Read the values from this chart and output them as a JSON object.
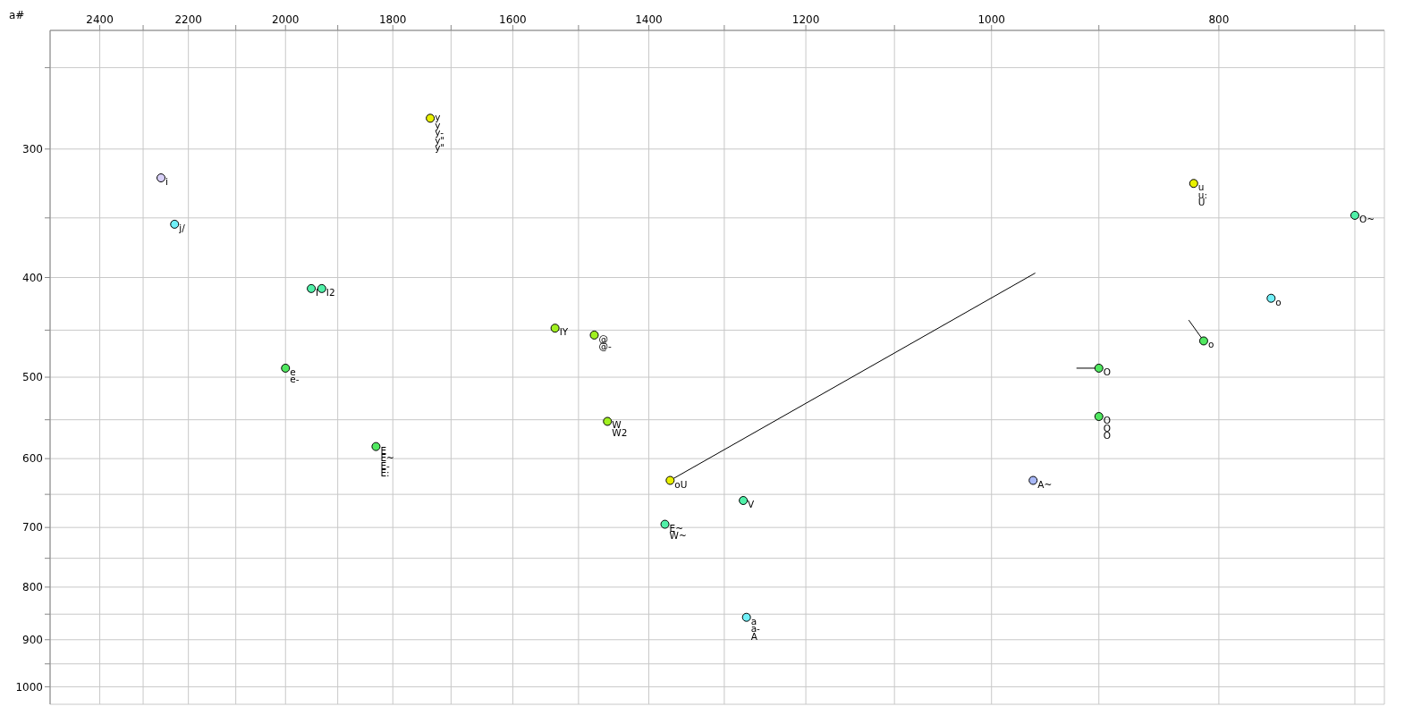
{
  "chart_data": {
    "type": "scatter",
    "log": "xy",
    "grid": true,
    "annotations": [
      "a#",
      {
        "text": "i",
        "x": 2260,
        "y": 320
      },
      {
        "text": "j/",
        "x": 2230,
        "y": 355
      },
      {
        "text": "I",
        "x": 1950,
        "y": 410
      },
      {
        "text": "I2",
        "x": 1930,
        "y": 410
      },
      {
        "text": "y",
        "x": 1735,
        "y": 280
      },
      {
        "text": "y",
        "x": 1735,
        "y": 280
      },
      {
        "text": "y-",
        "x": 1735,
        "y": 280
      },
      {
        "text": "y\"",
        "x": 1735,
        "y": 280
      },
      {
        "text": "y\"",
        "x": 1735,
        "y": 280
      },
      {
        "text": "IY",
        "x": 1535,
        "y": 448
      },
      {
        "text": "@",
        "x": 1477,
        "y": 455
      },
      {
        "text": "@-",
        "x": 1477,
        "y": 455
      },
      {
        "text": "e",
        "x": 2000,
        "y": 490
      },
      {
        "text": "e-",
        "x": 2000,
        "y": 490
      },
      {
        "text": "E",
        "x": 1830,
        "y": 584
      },
      {
        "text": "E~",
        "x": 1830,
        "y": 584
      },
      {
        "text": "E-",
        "x": 1830,
        "y": 584
      },
      {
        "text": "E:",
        "x": 1830,
        "y": 584
      },
      {
        "text": "W",
        "x": 1458,
        "y": 552
      },
      {
        "text": "W2",
        "x": 1458,
        "y": 552
      },
      {
        "text": "oU",
        "x": 1371,
        "y": 630
      },
      {
        "text": "E~",
        "x": 1378,
        "y": 695
      },
      {
        "text": "W~",
        "x": 1378,
        "y": 695
      },
      {
        "text": "V",
        "x": 1276,
        "y": 659
      },
      {
        "text": "a",
        "x": 1272,
        "y": 856
      },
      {
        "text": "a-",
        "x": 1272,
        "y": 856
      },
      {
        "text": "A",
        "x": 1272,
        "y": 856
      },
      {
        "text": "A~",
        "x": 960,
        "y": 630
      },
      {
        "text": "O",
        "x": 900,
        "y": 490
      },
      {
        "text": "O",
        "x": 900,
        "y": 546
      },
      {
        "text": "O",
        "x": 900,
        "y": 546
      },
      {
        "text": "O",
        "x": 900,
        "y": 546
      },
      {
        "text": "u",
        "x": 820,
        "y": 324
      },
      {
        "text": "u:",
        "x": 820,
        "y": 324
      },
      {
        "text": "U",
        "x": 820,
        "y": 324
      },
      {
        "text": "o",
        "x": 812,
        "y": 461
      },
      {
        "text": "o",
        "x": 760,
        "y": 419
      },
      {
        "text": "O~",
        "x": 700,
        "y": 348
      }
    ],
    "xlim": [
      2520,
      680
    ],
    "xticks": [
      2400,
      {
        "value": 2300,
        "label": null
      },
      2200,
      {
        "value": 2100,
        "label": null
      },
      2000,
      {
        "value": 1900,
        "label": null
      },
      1800,
      {
        "value": 1700,
        "label": null
      },
      1600,
      {
        "value": 1500,
        "label": null
      },
      1400,
      {
        "value": 1300,
        "label": null
      },
      1200,
      {
        "value": 1100,
        "label": null
      },
      1000,
      {
        "value": 900,
        "label": null
      },
      800,
      {
        "value": 700,
        "label": null
      }
    ],
    "ylim": [
      1040,
      230
    ],
    "yticks": [
      {
        "value": 250,
        "label": null
      },
      300,
      {
        "value": 350,
        "label": null
      },
      400,
      {
        "value": 450,
        "label": null
      },
      500,
      {
        "value": 550,
        "label": null
      },
      600,
      {
        "value": 650,
        "label": null
      },
      700,
      {
        "value": 750,
        "label": null
      },
      800,
      {
        "value": 850,
        "label": null
      },
      900,
      {
        "value": 950,
        "label": null
      },
      1000
    ],
    "series": [
      {
        "marker": "circle",
        "x": [
          2260,
          2230,
          1950,
          1930,
          1735,
          1535,
          1477,
          2000,
          1830,
          1458,
          1371,
          1378,
          1276,
          1272,
          960,
          900,
          900,
          820,
          812,
          760,
          700
        ],
        "values": [
          320,
          355,
          410,
          410,
          280,
          448,
          455,
          490,
          584,
          552,
          630,
          695,
          659,
          856,
          630,
          490,
          546,
          324,
          461,
          419,
          348
        ],
        "colors": [
          "#d8d0f8",
          "#70f0f8",
          "#50f0a8",
          "#50f0a8",
          "#e8f000",
          "#a0f020",
          "#a0f020",
          "#50e860",
          "#50e860",
          "#a0f020",
          "#e8f000",
          "#50f0a8",
          "#50f0a8",
          "#70f0f8",
          "#a8b8f8",
          "#50e860",
          "#50e860",
          "#e8f000",
          "#50e860",
          "#70f0f8",
          "#50f0a8"
        ]
      },
      {
        "type": "line",
        "marker": "none",
        "color": "#000000",
        "x": [
          1371,
          958
        ],
        "values": [
          630,
          396
        ]
      },
      {
        "type": "line",
        "marker": "none",
        "color": "#000000",
        "x": [
          920,
          900
        ],
        "values": [
          490,
          490
        ]
      },
      {
        "type": "line",
        "marker": "none",
        "color": "#000000",
        "x": [
          824,
          812
        ],
        "values": [
          440,
          461
        ]
      }
    ]
  }
}
